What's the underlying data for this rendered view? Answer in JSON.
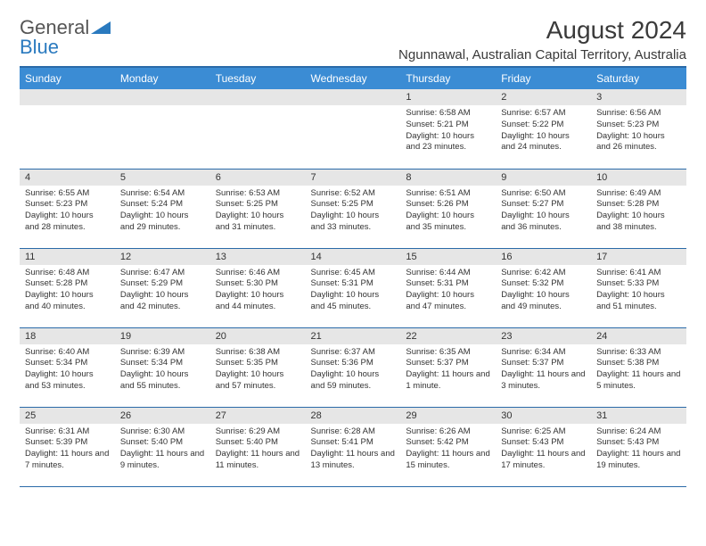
{
  "logo": {
    "text1": "General",
    "text2": "Blue"
  },
  "title": "August 2024",
  "location": "Ngunnawal, Australian Capital Territory, Australia",
  "colors": {
    "header_bg": "#3b8cd4",
    "header_text": "#ffffff",
    "daynum_bg": "#e6e6e6",
    "border": "#2a6aa8"
  },
  "weekdays": [
    "Sunday",
    "Monday",
    "Tuesday",
    "Wednesday",
    "Thursday",
    "Friday",
    "Saturday"
  ],
  "weeks": [
    [
      null,
      null,
      null,
      null,
      {
        "n": "1",
        "sr": "6:58 AM",
        "ss": "5:21 PM",
        "dl": "10 hours and 23 minutes."
      },
      {
        "n": "2",
        "sr": "6:57 AM",
        "ss": "5:22 PM",
        "dl": "10 hours and 24 minutes."
      },
      {
        "n": "3",
        "sr": "6:56 AM",
        "ss": "5:23 PM",
        "dl": "10 hours and 26 minutes."
      }
    ],
    [
      {
        "n": "4",
        "sr": "6:55 AM",
        "ss": "5:23 PM",
        "dl": "10 hours and 28 minutes."
      },
      {
        "n": "5",
        "sr": "6:54 AM",
        "ss": "5:24 PM",
        "dl": "10 hours and 29 minutes."
      },
      {
        "n": "6",
        "sr": "6:53 AM",
        "ss": "5:25 PM",
        "dl": "10 hours and 31 minutes."
      },
      {
        "n": "7",
        "sr": "6:52 AM",
        "ss": "5:25 PM",
        "dl": "10 hours and 33 minutes."
      },
      {
        "n": "8",
        "sr": "6:51 AM",
        "ss": "5:26 PM",
        "dl": "10 hours and 35 minutes."
      },
      {
        "n": "9",
        "sr": "6:50 AM",
        "ss": "5:27 PM",
        "dl": "10 hours and 36 minutes."
      },
      {
        "n": "10",
        "sr": "6:49 AM",
        "ss": "5:28 PM",
        "dl": "10 hours and 38 minutes."
      }
    ],
    [
      {
        "n": "11",
        "sr": "6:48 AM",
        "ss": "5:28 PM",
        "dl": "10 hours and 40 minutes."
      },
      {
        "n": "12",
        "sr": "6:47 AM",
        "ss": "5:29 PM",
        "dl": "10 hours and 42 minutes."
      },
      {
        "n": "13",
        "sr": "6:46 AM",
        "ss": "5:30 PM",
        "dl": "10 hours and 44 minutes."
      },
      {
        "n": "14",
        "sr": "6:45 AM",
        "ss": "5:31 PM",
        "dl": "10 hours and 45 minutes."
      },
      {
        "n": "15",
        "sr": "6:44 AM",
        "ss": "5:31 PM",
        "dl": "10 hours and 47 minutes."
      },
      {
        "n": "16",
        "sr": "6:42 AM",
        "ss": "5:32 PM",
        "dl": "10 hours and 49 minutes."
      },
      {
        "n": "17",
        "sr": "6:41 AM",
        "ss": "5:33 PM",
        "dl": "10 hours and 51 minutes."
      }
    ],
    [
      {
        "n": "18",
        "sr": "6:40 AM",
        "ss": "5:34 PM",
        "dl": "10 hours and 53 minutes."
      },
      {
        "n": "19",
        "sr": "6:39 AM",
        "ss": "5:34 PM",
        "dl": "10 hours and 55 minutes."
      },
      {
        "n": "20",
        "sr": "6:38 AM",
        "ss": "5:35 PM",
        "dl": "10 hours and 57 minutes."
      },
      {
        "n": "21",
        "sr": "6:37 AM",
        "ss": "5:36 PM",
        "dl": "10 hours and 59 minutes."
      },
      {
        "n": "22",
        "sr": "6:35 AM",
        "ss": "5:37 PM",
        "dl": "11 hours and 1 minute."
      },
      {
        "n": "23",
        "sr": "6:34 AM",
        "ss": "5:37 PM",
        "dl": "11 hours and 3 minutes."
      },
      {
        "n": "24",
        "sr": "6:33 AM",
        "ss": "5:38 PM",
        "dl": "11 hours and 5 minutes."
      }
    ],
    [
      {
        "n": "25",
        "sr": "6:31 AM",
        "ss": "5:39 PM",
        "dl": "11 hours and 7 minutes."
      },
      {
        "n": "26",
        "sr": "6:30 AM",
        "ss": "5:40 PM",
        "dl": "11 hours and 9 minutes."
      },
      {
        "n": "27",
        "sr": "6:29 AM",
        "ss": "5:40 PM",
        "dl": "11 hours and 11 minutes."
      },
      {
        "n": "28",
        "sr": "6:28 AM",
        "ss": "5:41 PM",
        "dl": "11 hours and 13 minutes."
      },
      {
        "n": "29",
        "sr": "6:26 AM",
        "ss": "5:42 PM",
        "dl": "11 hours and 15 minutes."
      },
      {
        "n": "30",
        "sr": "6:25 AM",
        "ss": "5:43 PM",
        "dl": "11 hours and 17 minutes."
      },
      {
        "n": "31",
        "sr": "6:24 AM",
        "ss": "5:43 PM",
        "dl": "11 hours and 19 minutes."
      }
    ]
  ],
  "labels": {
    "sunrise": "Sunrise: ",
    "sunset": "Sunset: ",
    "daylight": "Daylight: "
  }
}
